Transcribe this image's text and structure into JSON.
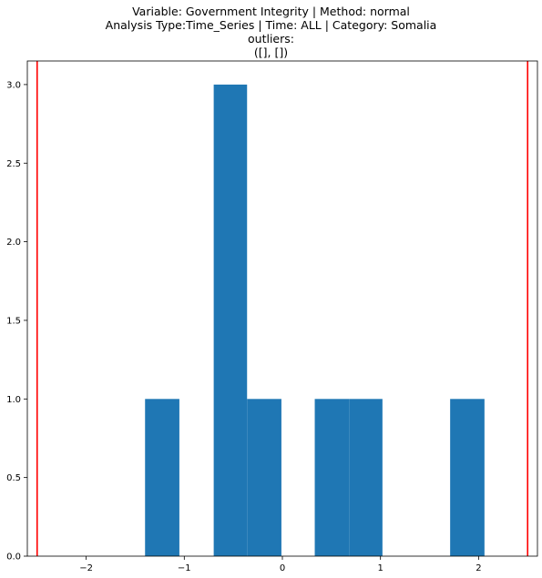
{
  "title_lines": [
    "Variable: Government Integrity | Method: normal",
    "Analysis Type:Time_Series | Time: ALL | Category: Somalia",
    "outliers:",
    "([], [])"
  ],
  "chart_data": {
    "type": "bar",
    "xlim": [
      -2.6,
      2.6
    ],
    "ylim": [
      0,
      3.15
    ],
    "xticks": [
      -2,
      -1,
      0,
      1,
      2
    ],
    "xtick_labels": [
      "−2",
      "−1",
      "0",
      "1",
      "2"
    ],
    "yticks": [
      0.0,
      0.5,
      1.0,
      1.5,
      2.0,
      2.5,
      3.0
    ],
    "ytick_labels": [
      "0.0",
      "0.5",
      "1.0",
      "1.5",
      "2.0",
      "2.5",
      "3.0"
    ],
    "bins": [
      {
        "x0": -1.4,
        "x1": -1.05,
        "count": 1
      },
      {
        "x0": -0.7,
        "x1": -0.36,
        "count": 3
      },
      {
        "x0": -0.36,
        "x1": -0.01,
        "count": 1
      },
      {
        "x0": 0.33,
        "x1": 0.68,
        "count": 1
      },
      {
        "x0": 0.68,
        "x1": 1.02,
        "count": 1
      },
      {
        "x0": 1.71,
        "x1": 2.06,
        "count": 1
      }
    ],
    "bar_color": "#1f77b4",
    "threshold_lines": [
      -2.5,
      2.5
    ],
    "threshold_color": "#ff0000",
    "grid": false
  }
}
